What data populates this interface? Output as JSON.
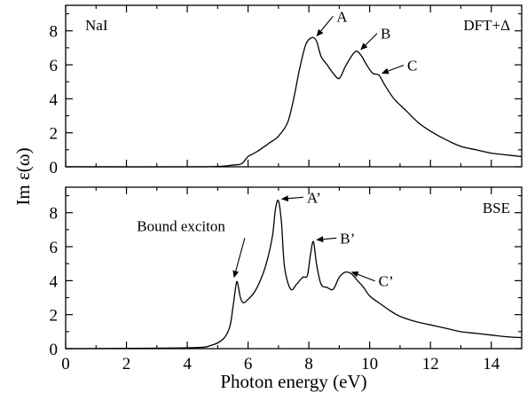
{
  "chart_data": [
    {
      "type": "line",
      "panel_label": "NaI",
      "method_label": "DFT+Δ",
      "xlabel": "Photon energy (eV)",
      "ylabel": "Im ε(ω)",
      "xlim": [
        0,
        15
      ],
      "ylim": [
        0,
        9.5
      ],
      "xticks": [
        0,
        2,
        4,
        6,
        8,
        10,
        12,
        14
      ],
      "yticks": [
        0,
        2,
        4,
        6,
        8
      ],
      "x_tick_labels_shown": false,
      "grid": false,
      "series": [
        {
          "x": [
            0,
            4.5,
            5.5,
            5.8,
            6.0,
            6.3,
            6.7,
            7.0,
            7.3,
            7.5,
            7.7,
            7.9,
            8.1,
            8.25,
            8.4,
            8.6,
            8.8,
            9.0,
            9.2,
            9.4,
            9.55,
            9.7,
            9.9,
            10.1,
            10.3,
            10.5,
            10.8,
            11.2,
            11.6,
            12.0,
            12.5,
            13.0,
            13.5,
            14.0,
            14.5,
            15.0
          ],
          "y": [
            0,
            0,
            0.1,
            0.2,
            0.6,
            0.9,
            1.4,
            1.8,
            2.6,
            4.0,
            5.8,
            7.2,
            7.6,
            7.4,
            6.5,
            6.0,
            5.5,
            5.2,
            5.9,
            6.5,
            6.8,
            6.6,
            6.0,
            5.5,
            5.4,
            4.8,
            4.0,
            3.3,
            2.6,
            2.1,
            1.6,
            1.2,
            1.0,
            0.8,
            0.7,
            0.6
          ]
        }
      ],
      "annotations": [
        {
          "text": "A",
          "x": 8.15,
          "y": 7.6
        },
        {
          "text": "B",
          "x": 9.6,
          "y": 6.8
        },
        {
          "text": "C",
          "x": 10.3,
          "y": 5.4
        }
      ]
    },
    {
      "type": "line",
      "method_label": "BSE",
      "xlabel": "Photon energy (eV)",
      "ylabel": "Im ε(ω)",
      "xlim": [
        0,
        15
      ],
      "ylim": [
        0,
        9.5
      ],
      "xticks": [
        0,
        2,
        4,
        6,
        8,
        10,
        12,
        14
      ],
      "yticks": [
        0,
        2,
        4,
        6,
        8
      ],
      "x_tick_labels": [
        "0",
        "2",
        "4",
        "6",
        "8",
        "10",
        "12",
        "14"
      ],
      "grid": false,
      "series": [
        {
          "x": [
            0,
            4.0,
            4.8,
            5.2,
            5.4,
            5.5,
            5.6,
            5.65,
            5.75,
            5.85,
            6.0,
            6.2,
            6.4,
            6.6,
            6.8,
            6.9,
            7.0,
            7.1,
            7.2,
            7.4,
            7.6,
            7.8,
            7.95,
            8.05,
            8.15,
            8.25,
            8.4,
            8.6,
            8.8,
            9.0,
            9.2,
            9.4,
            9.6,
            9.8,
            10.0,
            10.3,
            10.7,
            11.0,
            11.5,
            12.0,
            12.5,
            13.0,
            13.5,
            14.0,
            14.5,
            15.0
          ],
          "y": [
            0,
            0.05,
            0.2,
            0.6,
            1.3,
            2.4,
            3.7,
            3.9,
            3.0,
            2.7,
            2.9,
            3.3,
            4.0,
            5.0,
            6.6,
            8.2,
            8.7,
            7.4,
            4.8,
            3.5,
            3.8,
            4.2,
            4.3,
            5.5,
            6.3,
            5.0,
            3.8,
            3.6,
            3.5,
            4.2,
            4.5,
            4.4,
            4.0,
            3.6,
            3.1,
            2.7,
            2.2,
            1.9,
            1.6,
            1.4,
            1.2,
            1.0,
            0.9,
            0.8,
            0.7,
            0.65
          ]
        }
      ],
      "annotations": [
        {
          "text": "Bound exciton",
          "x": 5.6,
          "y": 3.9
        },
        {
          "text": "A’",
          "x": 7.0,
          "y": 8.7
        },
        {
          "text": "B’",
          "x": 8.15,
          "y": 6.3
        },
        {
          "text": "C’",
          "x": 9.3,
          "y": 4.4
        }
      ]
    }
  ]
}
